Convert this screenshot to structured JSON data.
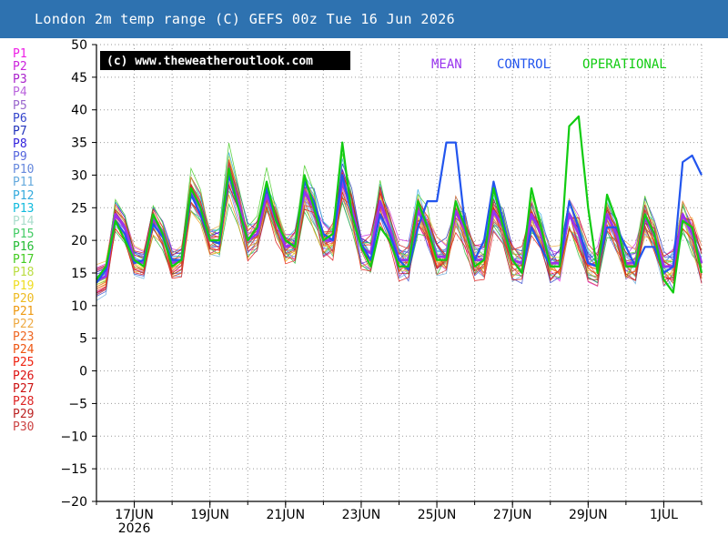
{
  "title": "London 2m temp range (C) GEFS 00z Tue 16 Jun 2026",
  "members": [
    {
      "label": "P1",
      "color": "#ee1ee6"
    },
    {
      "label": "P2",
      "color": "#cc22dd"
    },
    {
      "label": "P3",
      "color": "#aa22cc"
    },
    {
      "label": "P4",
      "color": "#bb66dd"
    },
    {
      "label": "P5",
      "color": "#9966cc"
    },
    {
      "label": "P6",
      "color": "#3344cc"
    },
    {
      "label": "P7",
      "color": "#2233bb"
    },
    {
      "label": "P8",
      "color": "#3322dd"
    },
    {
      "label": "P9",
      "color": "#5566dd"
    },
    {
      "label": "P10",
      "color": "#6688dd"
    },
    {
      "label": "P11",
      "color": "#66aadd"
    },
    {
      "label": "P12",
      "color": "#33aadd"
    },
    {
      "label": "P13",
      "color": "#11bbdd"
    },
    {
      "label": "P14",
      "color": "#aaddcc"
    },
    {
      "label": "P15",
      "color": "#44cc66"
    },
    {
      "label": "P16",
      "color": "#22bb33"
    },
    {
      "label": "P17",
      "color": "#44cc22"
    },
    {
      "label": "P18",
      "color": "#bbdd44"
    },
    {
      "label": "P19",
      "color": "#eedd22"
    },
    {
      "label": "P20",
      "color": "#eebb22"
    },
    {
      "label": "P21",
      "color": "#ee9911"
    },
    {
      "label": "P22",
      "color": "#eeaa44"
    },
    {
      "label": "P23",
      "color": "#ee6622"
    },
    {
      "label": "P24",
      "color": "#ee5511"
    },
    {
      "label": "P25",
      "color": "#ee2211"
    },
    {
      "label": "P26",
      "color": "#dd1111"
    },
    {
      "label": "P27",
      "color": "#cc1111"
    },
    {
      "label": "P28",
      "color": "#dd2222"
    },
    {
      "label": "P29",
      "color": "#bb2222"
    },
    {
      "label": "P30",
      "color": "#cc4444"
    }
  ],
  "chart_data": {
    "type": "line",
    "title": "London 2m temp range (C) GEFS 00z Tue 16 Jun 2026",
    "copyright": "(c) www.theweatheroutlook.com",
    "ylim": [
      -20,
      50
    ],
    "yticks": [
      50,
      45,
      40,
      35,
      30,
      25,
      20,
      15,
      10,
      5,
      0,
      -5,
      -10,
      -15,
      -20
    ],
    "xlim": [
      "2026-06-16T00",
      "2026-07-02T00"
    ],
    "xticks": [
      {
        "label": "17JUN",
        "sub": "2026",
        "date": "2026-06-17"
      },
      {
        "label": "19JUN",
        "date": "2026-06-19"
      },
      {
        "label": "21JUN",
        "date": "2026-06-21"
      },
      {
        "label": "23JUN",
        "date": "2026-06-23"
      },
      {
        "label": "25JUN",
        "date": "2026-06-25"
      },
      {
        "label": "27JUN",
        "date": "2026-06-27"
      },
      {
        "label": "29JUN",
        "date": "2026-06-29"
      },
      {
        "label": "1JUL",
        "date": "2026-07-01"
      }
    ],
    "grid": true,
    "legend_position": "top-right",
    "x": [
      "2026-06-16T00",
      "2026-06-16T06",
      "2026-06-16T12",
      "2026-06-16T18",
      "2026-06-17T00",
      "2026-06-17T06",
      "2026-06-17T12",
      "2026-06-17T18",
      "2026-06-18T00",
      "2026-06-18T06",
      "2026-06-18T12",
      "2026-06-18T18",
      "2026-06-19T00",
      "2026-06-19T06",
      "2026-06-19T12",
      "2026-06-19T18",
      "2026-06-20T00",
      "2026-06-20T06",
      "2026-06-20T12",
      "2026-06-20T18",
      "2026-06-21T00",
      "2026-06-21T06",
      "2026-06-21T12",
      "2026-06-21T18",
      "2026-06-22T00",
      "2026-06-22T06",
      "2026-06-22T12",
      "2026-06-22T18",
      "2026-06-23T00",
      "2026-06-23T06",
      "2026-06-23T12",
      "2026-06-23T18",
      "2026-06-24T00",
      "2026-06-24T06",
      "2026-06-24T12",
      "2026-06-24T18",
      "2026-06-25T00",
      "2026-06-25T06",
      "2026-06-25T12",
      "2026-06-25T18",
      "2026-06-26T00",
      "2026-06-26T06",
      "2026-06-26T12",
      "2026-06-26T18",
      "2026-06-27T00",
      "2026-06-27T06",
      "2026-06-27T12",
      "2026-06-27T18",
      "2026-06-28T00",
      "2026-06-28T06",
      "2026-06-28T12",
      "2026-06-28T18",
      "2026-06-29T00",
      "2026-06-29T06",
      "2026-06-29T12",
      "2026-06-29T18",
      "2026-06-30T00",
      "2026-06-30T06",
      "2026-06-30T12",
      "2026-06-30T18",
      "2026-07-01T00",
      "2026-07-01T06",
      "2026-07-01T12",
      "2026-07-01T18",
      "2026-07-02T00"
    ],
    "series": [
      {
        "name": "MEAN",
        "color": "#9933ee",
        "width": 2.8,
        "values": [
          13.8,
          14.5,
          24,
          22,
          17,
          16.5,
          23.5,
          21,
          16.5,
          17,
          27.5,
          25,
          20,
          20,
          30.5,
          26,
          20,
          21,
          27,
          23,
          19,
          19.5,
          27.5,
          25,
          20,
          20,
          29,
          25,
          19,
          18,
          26,
          22,
          17,
          17,
          24.5,
          22,
          17.5,
          17.5,
          24.5,
          21.5,
          17,
          17,
          24.5,
          22,
          17,
          16.5,
          24,
          21,
          16.5,
          16.5,
          24,
          21,
          16.5,
          16,
          24,
          21,
          16.5,
          16.5,
          23.5,
          21,
          16,
          16,
          24,
          21,
          16.5
        ]
      },
      {
        "name": "CONTROL",
        "color": "#2255ee",
        "width": 2.2,
        "values": [
          13.5,
          15.5,
          23,
          21,
          16.5,
          17,
          22.5,
          20.5,
          17,
          17,
          27,
          24,
          20,
          19.5,
          30,
          25,
          20,
          22,
          28,
          23,
          20,
          19,
          29,
          26,
          21,
          20,
          30,
          24,
          19.5,
          17,
          24,
          21,
          17,
          15.5,
          22,
          26,
          26,
          35,
          35,
          22,
          17,
          20,
          29,
          23,
          17,
          15,
          22,
          19,
          16,
          16,
          26,
          22,
          16.5,
          16,
          22,
          22,
          19,
          16,
          19,
          19,
          15,
          16,
          32,
          33,
          30
        ]
      },
      {
        "name": "OPERATIONAL",
        "color": "#11cc11",
        "width": 2.2,
        "values": [
          14,
          16,
          23,
          20,
          17,
          16,
          24,
          21,
          16,
          17,
          28,
          25,
          20,
          20,
          31,
          25,
          20,
          22,
          29,
          23,
          20,
          19,
          30,
          25,
          20,
          21,
          35,
          24,
          19,
          16,
          22,
          20,
          16,
          16,
          26,
          22,
          17,
          17,
          26,
          22,
          16,
          17,
          28,
          22,
          17,
          15,
          28,
          22,
          16,
          16,
          37.5,
          39,
          25,
          15,
          27,
          23,
          16,
          16,
          24,
          21,
          14,
          12,
          23,
          22,
          15
        ]
      }
    ]
  }
}
